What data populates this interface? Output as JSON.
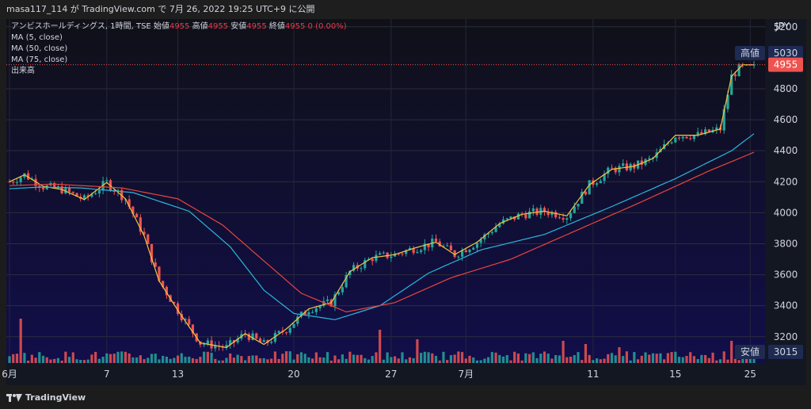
{
  "header": {
    "publish_text": "masa117_114 が TradingView.com で 7月 26, 2022 19:25 UTC+9 に公開"
  },
  "legend": {
    "symbol": "アンビスホールディングス, 1時間, TSE",
    "open_label": "始値",
    "open_value": "4955",
    "high_label": "高値",
    "high_value": "4955",
    "low_label": "安値",
    "low_value": "4955",
    "close_label": "終値",
    "close_value": "4955",
    "change": "0 (0.00%)",
    "ma1": "MA (5, close)",
    "ma2": "MA (50, close)",
    "ma3": "MA (75, close)",
    "volume": "出来高"
  },
  "axis": {
    "currency": "JPY",
    "price_ticks": [
      "5200",
      "4800",
      "4600",
      "4400",
      "4200",
      "4000",
      "3800",
      "3600",
      "3400",
      "3200"
    ],
    "date_ticks": [
      "6月",
      "7",
      "13",
      "20",
      "27",
      "7月",
      "11",
      "15",
      "25"
    ],
    "high_tag_label": "高値",
    "high_tag_value": "5030",
    "last_tag_value": "4955",
    "low_tag_label": "安値",
    "low_tag_value": "3015"
  },
  "colors": {
    "up": "#26a69a",
    "down": "#ef5350",
    "ma5": "#f5c542",
    "ma50": "#2bb6d9",
    "ma75": "#e8453c",
    "bg_top": "#101018",
    "bg_bottom": "#110e4a"
  },
  "chart_data": {
    "type": "candlestick",
    "title": "",
    "ylim": [
      3030,
      5250
    ],
    "y_ticks": [
      3200,
      3400,
      3600,
      3800,
      4000,
      4200,
      4400,
      4600,
      4800,
      5200
    ],
    "x_ticks": [
      "6月",
      "7",
      "13",
      "20",
      "27",
      "7月",
      "11",
      "15",
      "25"
    ],
    "series": [
      {
        "name": "MA (5, close)",
        "type": "line",
        "values": [
          [
            0,
            4200
          ],
          [
            4,
            4245
          ],
          [
            9,
            4170
          ],
          [
            14,
            4150
          ],
          [
            20,
            4085
          ],
          [
            26,
            4195
          ],
          [
            31,
            4090
          ],
          [
            36,
            3850
          ],
          [
            40,
            3560
          ],
          [
            45,
            3370
          ],
          [
            51,
            3160
          ],
          [
            58,
            3130
          ],
          [
            63,
            3220
          ],
          [
            68,
            3150
          ],
          [
            74,
            3250
          ],
          [
            80,
            3380
          ],
          [
            86,
            3420
          ],
          [
            91,
            3620
          ],
          [
            97,
            3710
          ],
          [
            103,
            3730
          ],
          [
            108,
            3770
          ],
          [
            114,
            3810
          ],
          [
            119,
            3730
          ],
          [
            125,
            3810
          ],
          [
            131,
            3930
          ],
          [
            137,
            3990
          ],
          [
            143,
            4010
          ],
          [
            149,
            3980
          ],
          [
            155,
            4180
          ],
          [
            161,
            4280
          ],
          [
            167,
            4300
          ],
          [
            172,
            4350
          ],
          [
            178,
            4500
          ],
          [
            184,
            4500
          ],
          [
            190,
            4540
          ],
          [
            193,
            4880
          ],
          [
            196,
            4955
          ],
          [
            199,
            4955
          ]
        ]
      },
      {
        "name": "MA (50, close)",
        "type": "line",
        "values": [
          [
            0,
            4155
          ],
          [
            8,
            4165
          ],
          [
            19,
            4160
          ],
          [
            33,
            4130
          ],
          [
            48,
            4010
          ],
          [
            59,
            3780
          ],
          [
            68,
            3500
          ],
          [
            76,
            3350
          ],
          [
            87,
            3310
          ],
          [
            99,
            3400
          ],
          [
            112,
            3610
          ],
          [
            126,
            3760
          ],
          [
            143,
            3860
          ],
          [
            161,
            4040
          ],
          [
            178,
            4220
          ],
          [
            193,
            4400
          ],
          [
            199,
            4510
          ]
        ]
      },
      {
        "name": "MA (75, close)",
        "type": "line",
        "values": [
          [
            0,
            4175
          ],
          [
            12,
            4185
          ],
          [
            30,
            4160
          ],
          [
            45,
            4090
          ],
          [
            57,
            3920
          ],
          [
            67,
            3710
          ],
          [
            78,
            3480
          ],
          [
            90,
            3360
          ],
          [
            103,
            3420
          ],
          [
            118,
            3580
          ],
          [
            134,
            3700
          ],
          [
            151,
            3880
          ],
          [
            168,
            4060
          ],
          [
            187,
            4270
          ],
          [
            199,
            4390
          ]
        ]
      }
    ],
    "high": 5030,
    "last": 4955,
    "low": 3015,
    "volume_spikes": [
      {
        "x": 3,
        "h": 56
      },
      {
        "x": 99,
        "h": 42
      },
      {
        "x": 109,
        "h": 30
      },
      {
        "x": 148,
        "h": 28
      },
      {
        "x": 154,
        "h": 24
      },
      {
        "x": 163,
        "h": 20
      },
      {
        "x": 193,
        "h": 28
      }
    ]
  }
}
